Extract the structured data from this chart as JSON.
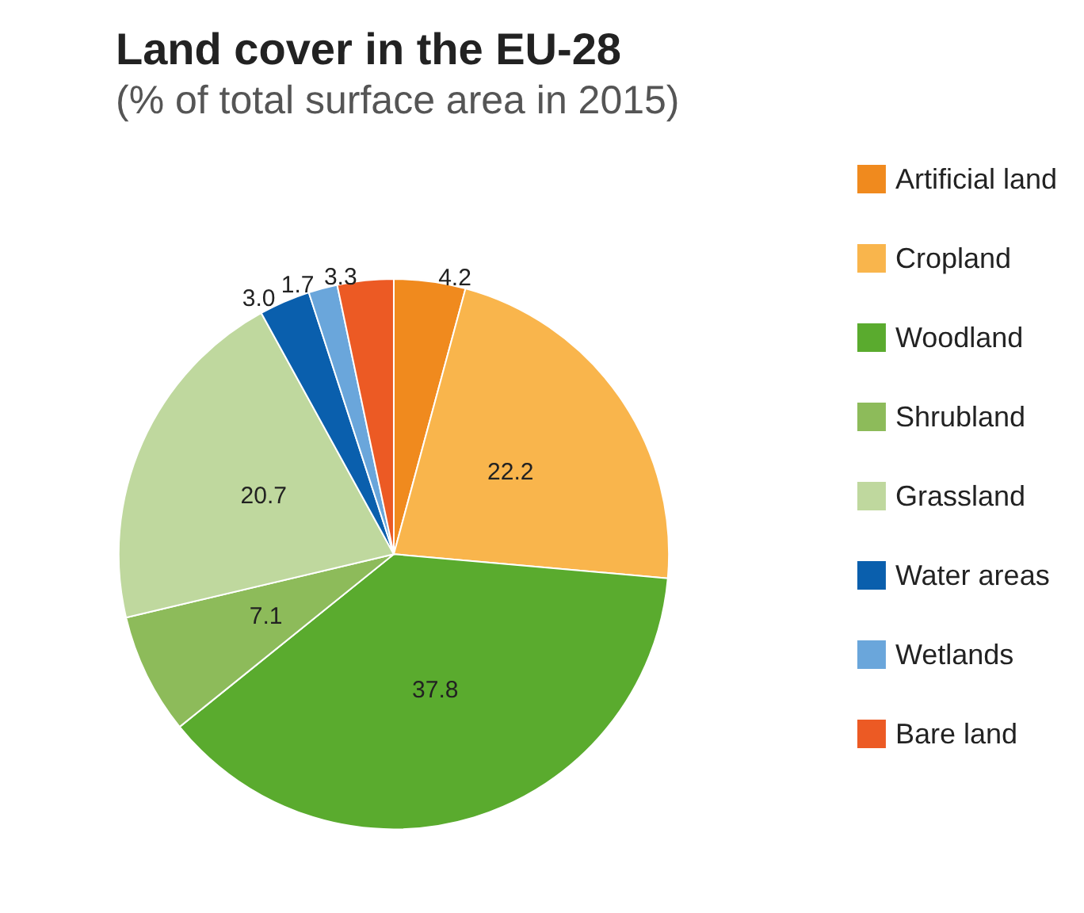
{
  "chart_data": {
    "type": "pie",
    "title": "Land cover in the EU-28",
    "subtitle": "(% of total surface area in 2015)",
    "categories": [
      "Artificial land",
      "Cropland",
      "Woodland",
      "Shrubland",
      "Grassland",
      "Water areas",
      "Wetlands",
      "Bare land"
    ],
    "values": [
      4.2,
      22.2,
      37.8,
      7.1,
      20.7,
      3.0,
      1.7,
      3.3
    ],
    "value_labels": [
      "4.2",
      "22.2",
      "37.8",
      "7.1",
      "20.7",
      "3.0",
      "1.7",
      "3.3"
    ],
    "colors": [
      "#f08a1e",
      "#f9b54c",
      "#5aab2e",
      "#8dbb5a",
      "#bfd89e",
      "#0a5fad",
      "#6aa6db",
      "#ec5a24"
    ],
    "legend": "right"
  }
}
